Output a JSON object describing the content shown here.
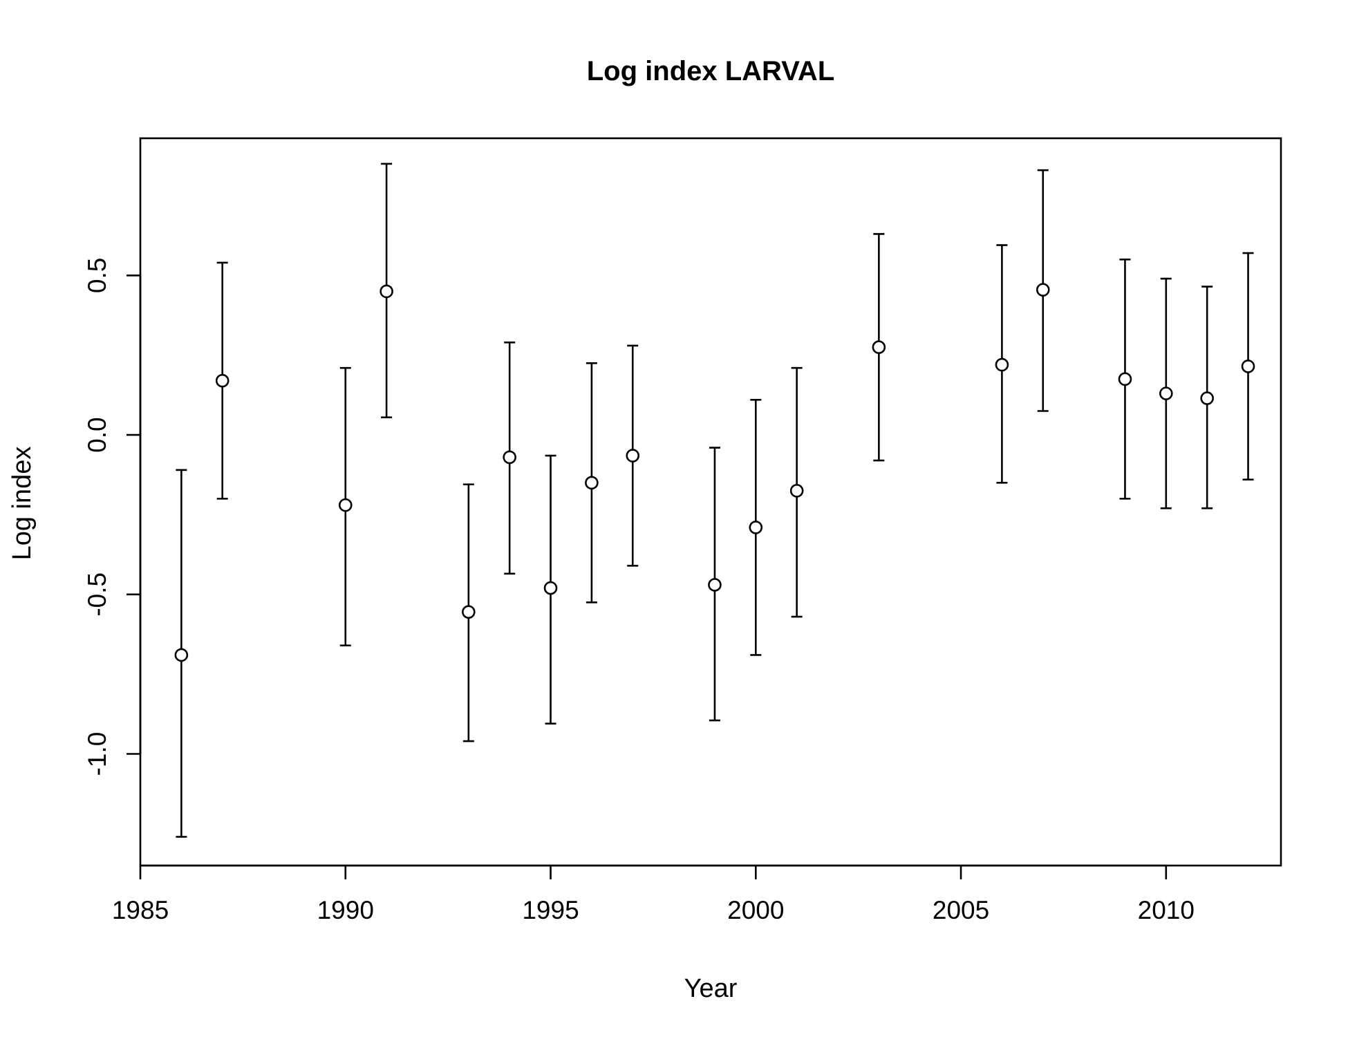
{
  "chart_data": {
    "type": "scatter",
    "title": "Log index LARVAL",
    "xlabel": "Year",
    "ylabel": "Log index",
    "xlim": [
      1985,
      2012.8
    ],
    "ylim": [
      -1.35,
      0.93
    ],
    "x_ticks": [
      1985,
      1990,
      1995,
      2000,
      2005,
      2010
    ],
    "y_ticks": [
      -1.0,
      -0.5,
      0.0,
      0.5
    ],
    "y_tick_labels": [
      "-1.0",
      "-0.5",
      "0.0",
      "0.5"
    ],
    "grid": false,
    "legend": "none",
    "marker": "open-circle",
    "error_bars": true,
    "points": [
      {
        "x": 1986,
        "y": -0.69,
        "lower": -1.26,
        "upper": -0.11
      },
      {
        "x": 1987,
        "y": 0.17,
        "lower": -0.2,
        "upper": 0.54
      },
      {
        "x": 1990,
        "y": -0.22,
        "lower": -0.66,
        "upper": 0.21
      },
      {
        "x": 1991,
        "y": 0.45,
        "lower": 0.055,
        "upper": 0.85
      },
      {
        "x": 1993,
        "y": -0.555,
        "lower": -0.96,
        "upper": -0.155
      },
      {
        "x": 1994,
        "y": -0.07,
        "lower": -0.435,
        "upper": 0.29
      },
      {
        "x": 1995,
        "y": -0.48,
        "lower": -0.905,
        "upper": -0.065
      },
      {
        "x": 1996,
        "y": -0.15,
        "lower": -0.525,
        "upper": 0.225
      },
      {
        "x": 1997,
        "y": -0.065,
        "lower": -0.41,
        "upper": 0.28
      },
      {
        "x": 1999,
        "y": -0.47,
        "lower": -0.895,
        "upper": -0.04
      },
      {
        "x": 2000,
        "y": -0.29,
        "lower": -0.69,
        "upper": 0.11
      },
      {
        "x": 2001,
        "y": -0.175,
        "lower": -0.57,
        "upper": 0.21
      },
      {
        "x": 2003,
        "y": 0.275,
        "lower": -0.08,
        "upper": 0.63
      },
      {
        "x": 2006,
        "y": 0.22,
        "lower": -0.15,
        "upper": 0.595
      },
      {
        "x": 2007,
        "y": 0.455,
        "lower": 0.075,
        "upper": 0.83
      },
      {
        "x": 2009,
        "y": 0.175,
        "lower": -0.2,
        "upper": 0.55
      },
      {
        "x": 2010,
        "y": 0.13,
        "lower": -0.23,
        "upper": 0.49
      },
      {
        "x": 2011,
        "y": 0.115,
        "lower": -0.23,
        "upper": 0.465
      },
      {
        "x": 2012,
        "y": 0.215,
        "lower": -0.14,
        "upper": 0.57
      }
    ]
  }
}
